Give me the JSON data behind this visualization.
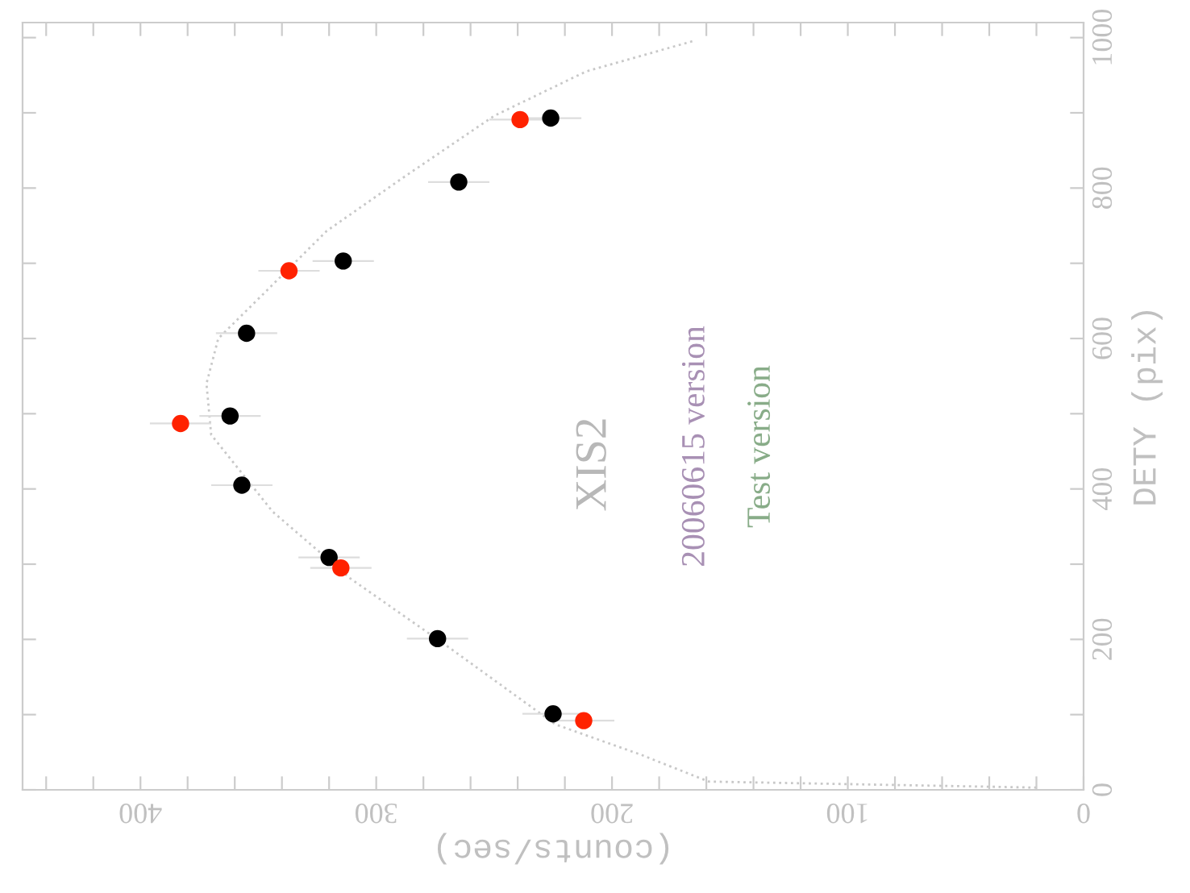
{
  "chart_data": {
    "type": "scatter",
    "xlabel": "(counts/sec)",
    "ylabel": "DETY (pix)",
    "xlim": [
      450,
      0
    ],
    "ylim": [
      0,
      1020
    ],
    "xticks": [
      0,
      {
        "value": 20,
        "label": null
      },
      {
        "value": 40,
        "label": null
      },
      {
        "value": 60,
        "label": null
      },
      {
        "value": 80,
        "label": null
      },
      100,
      {
        "value": 120,
        "label": null
      },
      {
        "value": 140,
        "label": null
      },
      {
        "value": 160,
        "label": null
      },
      {
        "value": 180,
        "label": null
      },
      200,
      {
        "value": 220,
        "label": null
      },
      {
        "value": 240,
        "label": null
      },
      {
        "value": 260,
        "label": null
      },
      {
        "value": 280,
        "label": null
      },
      300,
      {
        "value": 320,
        "label": null
      },
      {
        "value": 340,
        "label": null
      },
      {
        "value": 360,
        "label": null
      },
      {
        "value": 380,
        "label": null
      },
      400,
      {
        "value": 420,
        "label": null
      },
      {
        "value": 440,
        "label": null
      }
    ],
    "yticks": [
      0,
      {
        "value": 100,
        "label": null
      },
      200,
      {
        "value": 300,
        "label": null
      },
      400,
      {
        "value": 500,
        "label": null
      },
      600,
      {
        "value": 700,
        "label": null
      },
      800,
      {
        "value": 900,
        "label": null
      },
      1000
    ],
    "grid": false,
    "legend": false,
    "marker": "circle",
    "series": [
      {
        "type": "line",
        "marker": "none",
        "line_style": "dotted",
        "color": "#c8c8c8",
        "x": [
          20,
          159,
          188,
          224,
          269,
          311,
          344,
          370,
          372,
          367,
          347,
          321,
          289,
          250,
          211,
          165
        ],
        "values": [
          3,
          11,
          47,
          87,
          189,
          281,
          370,
          472,
          540,
          600,
          662,
          743,
          813,
          896,
          955,
          996
        ]
      },
      {
        "color": "#000000",
        "x": [
          226,
          265,
          314,
          355,
          362,
          357,
          320,
          274,
          225
        ],
        "values": [
          893,
          808,
          703,
          607,
          497,
          405,
          309,
          201,
          101
        ],
        "xerrors": [
          13,
          13,
          13,
          13,
          13,
          13,
          13,
          13,
          13
        ]
      },
      {
        "color": "#ff2200",
        "x": [
          239,
          337,
          383,
          315,
          212
        ],
        "values": [
          891,
          690,
          487,
          295,
          92
        ],
        "xerrors": [
          13,
          13,
          13,
          13,
          13
        ]
      }
    ],
    "annotations": [
      "XIS2",
      "20060615 version",
      "Test version"
    ]
  }
}
